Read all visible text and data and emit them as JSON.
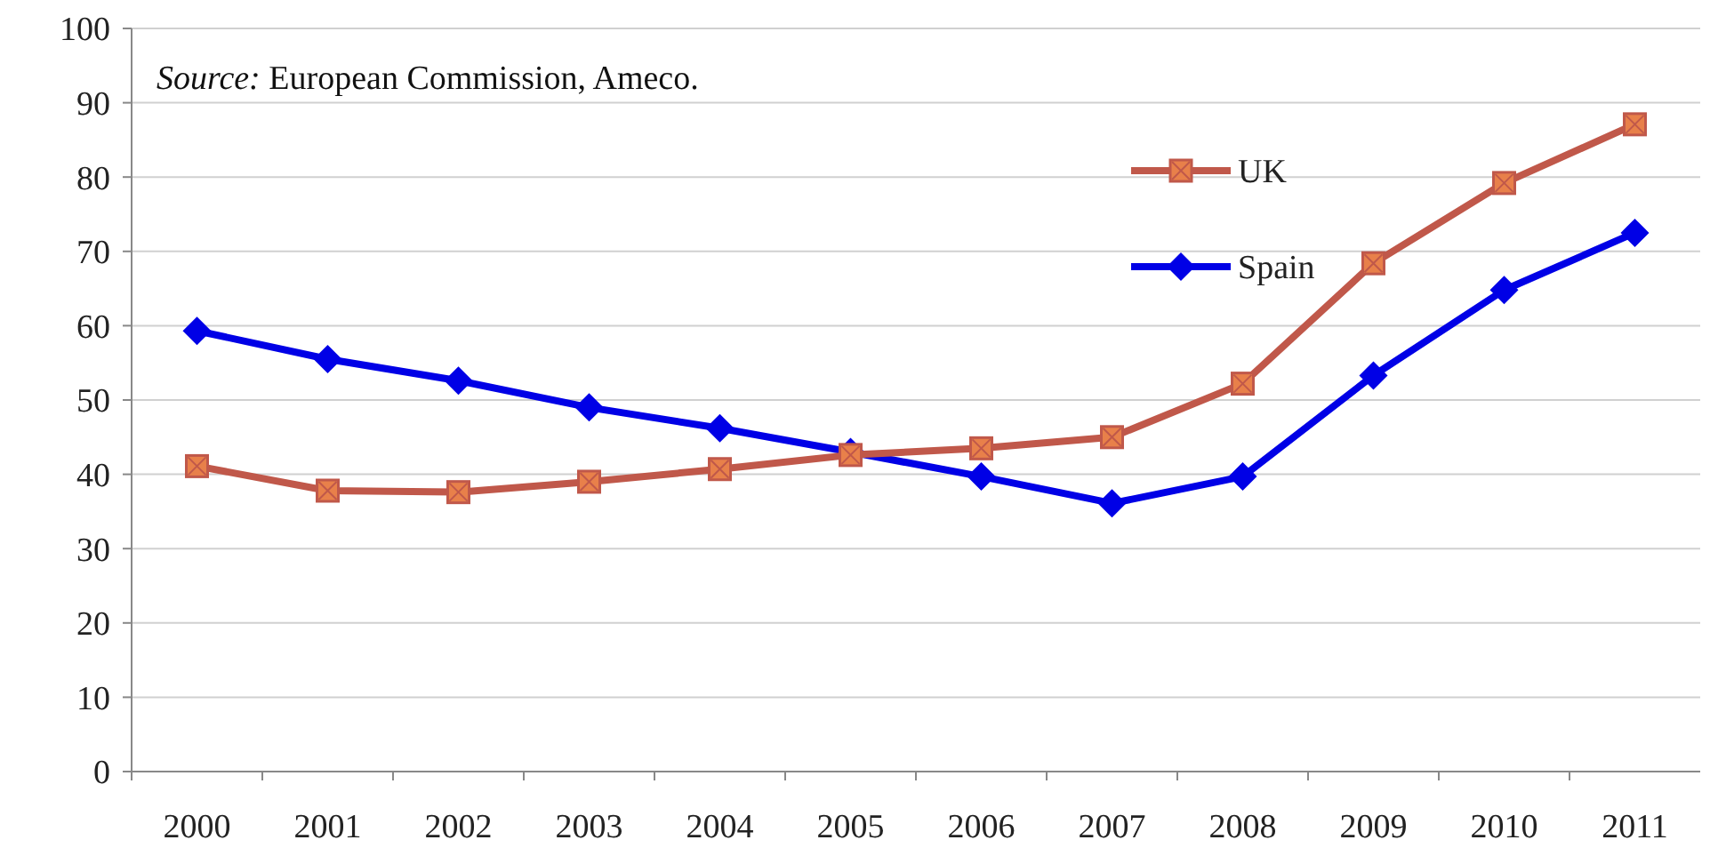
{
  "chart_data": {
    "type": "line",
    "categories": [
      "2000",
      "2001",
      "2002",
      "2003",
      "2004",
      "2005",
      "2006",
      "2007",
      "2008",
      "2009",
      "2010",
      "2011"
    ],
    "series": [
      {
        "name": "UK",
        "color": "#c0584a",
        "marker": "square",
        "values": [
          41.1,
          37.8,
          37.6,
          39,
          40.7,
          42.6,
          43.5,
          45,
          52.2,
          68.4,
          79.2,
          87.1
        ]
      },
      {
        "name": "Spain",
        "color": "#0000e6",
        "marker": "diamond",
        "values": [
          59.3,
          55.5,
          52.6,
          49,
          46.2,
          43,
          39.7,
          36.1,
          39.7,
          53.3,
          64.8,
          72.5
        ]
      }
    ],
    "ylim": [
      0,
      100
    ],
    "yticks": [
      0,
      10,
      20,
      30,
      40,
      50,
      60,
      70,
      80,
      90,
      100
    ],
    "grid": "y",
    "legend": "top right",
    "annotations": [
      "Source: European Commission, Ameco."
    ]
  }
}
